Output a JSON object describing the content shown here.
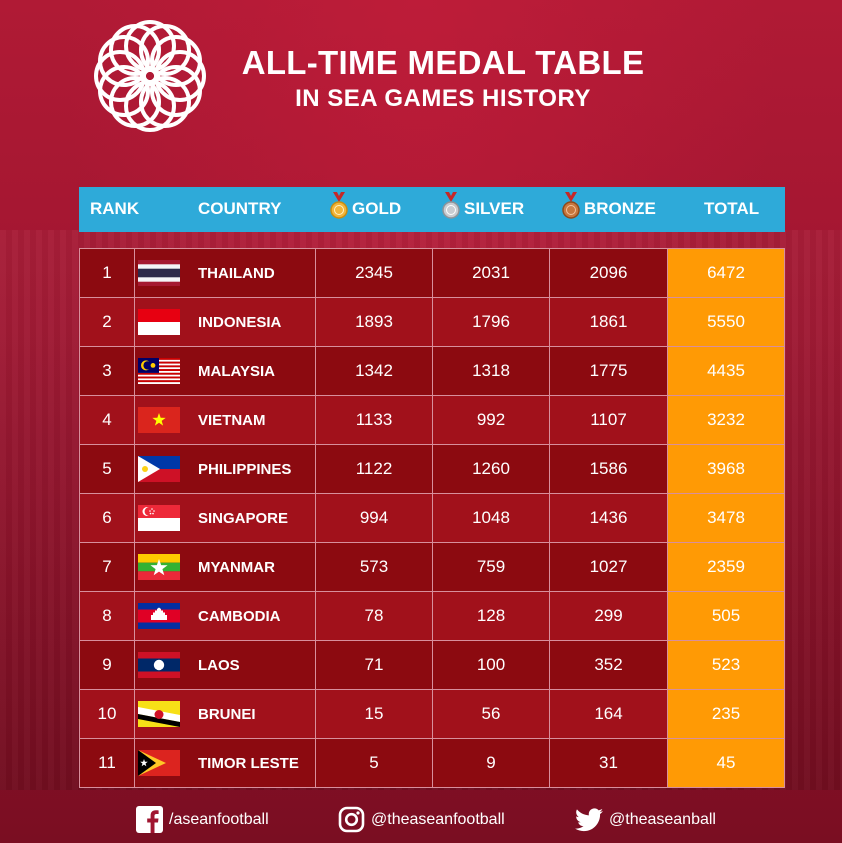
{
  "header": {
    "title": "ALL-TIME MEDAL TABLE",
    "subtitle": "IN SEA GAMES HISTORY"
  },
  "columns": {
    "rank": "RANK",
    "country": "COUNTRY",
    "gold": "GOLD",
    "silver": "SILVER",
    "bronze": "BRONZE",
    "total": "TOTAL"
  },
  "rows": [
    {
      "rank": "1",
      "country": "THAILAND",
      "flag": "thailand-flag",
      "gold": "2345",
      "silver": "2031",
      "bronze": "2096",
      "total": "6472"
    },
    {
      "rank": "2",
      "country": "INDONESIA",
      "flag": "indonesia-flag",
      "gold": "1893",
      "silver": "1796",
      "bronze": "1861",
      "total": "5550"
    },
    {
      "rank": "3",
      "country": "MALAYSIA",
      "flag": "malaysia-flag",
      "gold": "1342",
      "silver": "1318",
      "bronze": "1775",
      "total": "4435"
    },
    {
      "rank": "4",
      "country": "VIETNAM",
      "flag": "vietnam-flag",
      "gold": "1133",
      "silver": "992",
      "bronze": "1107",
      "total": "3232"
    },
    {
      "rank": "5",
      "country": "PHILIPPINES",
      "flag": "philippines-flag",
      "gold": "1122",
      "silver": "1260",
      "bronze": "1586",
      "total": "3968"
    },
    {
      "rank": "6",
      "country": "SINGAPORE",
      "flag": "singapore-flag",
      "gold": "994",
      "silver": "1048",
      "bronze": "1436",
      "total": "3478"
    },
    {
      "rank": "7",
      "country": "MYANMAR",
      "flag": "myanmar-flag",
      "gold": "573",
      "silver": "759",
      "bronze": "1027",
      "total": "2359"
    },
    {
      "rank": "8",
      "country": "CAMBODIA",
      "flag": "cambodia-flag",
      "gold": "78",
      "silver": "128",
      "bronze": "299",
      "total": "505"
    },
    {
      "rank": "9",
      "country": "LAOS",
      "flag": "laos-flag",
      "gold": "71",
      "silver": "100",
      "bronze": "352",
      "total": "523"
    },
    {
      "rank": "10",
      "country": "BRUNEI",
      "flag": "brunei-flag",
      "gold": "15",
      "silver": "56",
      "bronze": "164",
      "total": "235"
    },
    {
      "rank": "11",
      "country": "TIMOR LESTE",
      "flag": "timor-leste-flag",
      "gold": "5",
      "silver": "9",
      "bronze": "31",
      "total": "45"
    }
  ],
  "footer": {
    "facebook": "/aseanfootball",
    "instagram": "@theaseanfootball",
    "twitter": "@theaseanball"
  },
  "icons": {
    "logo": "sea-games-flower-logo",
    "gold": "gold-medal-icon",
    "silver": "silver-medal-icon",
    "bronze": "bronze-medal-icon",
    "facebook": "facebook-icon",
    "instagram": "instagram-icon",
    "twitter": "twitter-icon"
  },
  "colors": {
    "background": "#a5162f",
    "header_bar": "#2eaad9",
    "row_dark": "#8c0a10",
    "row_light": "#a1111b",
    "total_cell": "#ff9a05"
  }
}
